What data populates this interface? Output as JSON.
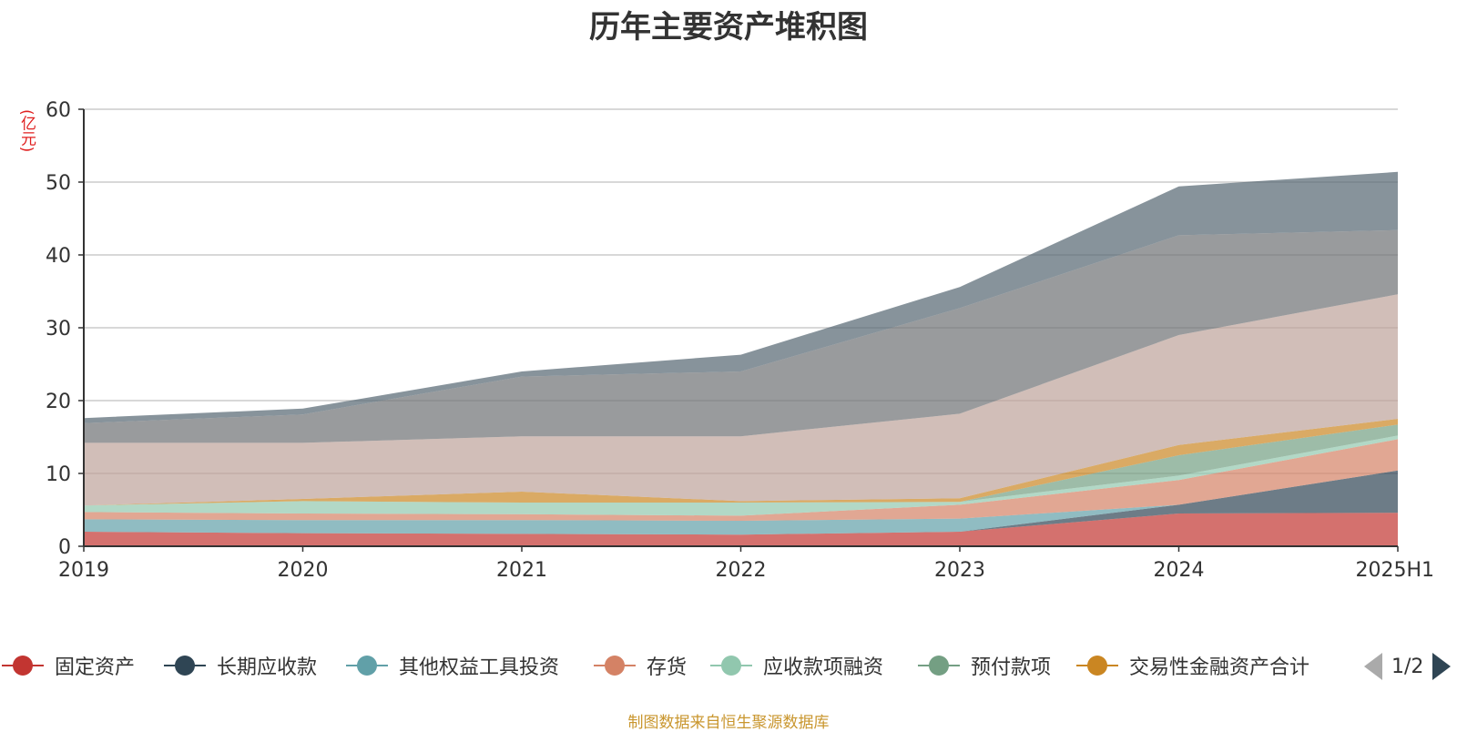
{
  "chart_data": {
    "type": "area",
    "stacked": true,
    "title": "历年主要资产堆积图",
    "ylabel": "(亿元)",
    "xlabel": "",
    "categories": [
      "2019",
      "2020",
      "2021",
      "2022",
      "2023",
      "2024",
      "2025H1"
    ],
    "ylim": [
      0,
      60
    ],
    "yticks": [
      0,
      10,
      20,
      30,
      40,
      50,
      60
    ],
    "grid": true,
    "legend_position": "bottom",
    "series": [
      {
        "name": "固定资产",
        "color": "#c23531",
        "values": [
          2.0,
          1.8,
          1.7,
          1.6,
          2.0,
          4.5,
          4.6
        ]
      },
      {
        "name": "长期应收款",
        "color": "#2f4554",
        "values": [
          0,
          0,
          0,
          0,
          0,
          1.2,
          5.8
        ]
      },
      {
        "name": "其他权益工具投资",
        "color": "#61a0a8",
        "values": [
          1.7,
          1.8,
          1.9,
          1.9,
          1.8,
          0,
          0
        ]
      },
      {
        "name": "存货",
        "color": "#d48265",
        "values": [
          1.0,
          0.9,
          0.8,
          0.7,
          1.9,
          3.4,
          4.3
        ]
      },
      {
        "name": "应收款项融资",
        "color": "#91c7ae",
        "values": [
          0.9,
          1.7,
          1.6,
          1.8,
          0.4,
          0.6,
          0.5
        ]
      },
      {
        "name": "预付款项",
        "color": "#749f83",
        "values": [
          0,
          0,
          0,
          0,
          0,
          2.8,
          1.5
        ]
      },
      {
        "name": "交易性金融资产合计",
        "color": "#ca8622",
        "values": [
          0,
          0.3,
          1.5,
          0.2,
          0.5,
          1.4,
          0.8
        ]
      },
      {
        "name": "",
        "color": "#bda29a",
        "values": [
          8.6,
          7.7,
          7.6,
          8.9,
          11.6,
          15.1,
          17.1
        ]
      },
      {
        "name": "",
        "color": "#6e7074",
        "values": [
          2.7,
          3.9,
          8.2,
          8.9,
          14.5,
          13.7,
          8.8
        ]
      },
      {
        "name": "",
        "color": "#546570",
        "values": [
          0.7,
          0.8,
          0.7,
          2.3,
          2.9,
          6.7,
          8.0
        ]
      }
    ]
  },
  "legend": {
    "page_indicator": "1/2"
  },
  "source_note": "制图数据来自恒生聚源数据库",
  "colors": {
    "axis": "#333333",
    "grid": "#cccccc",
    "ylabel": "#e02020",
    "source_note": "#c9962e"
  }
}
